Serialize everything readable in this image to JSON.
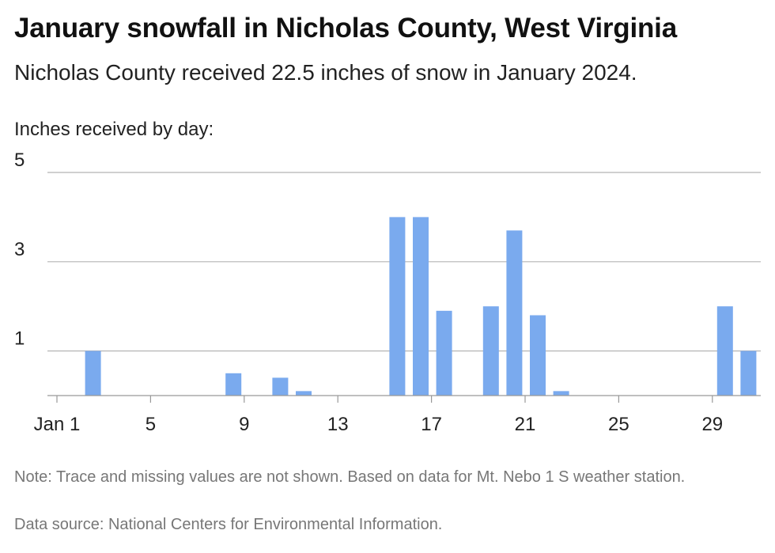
{
  "header": {
    "title": "January snowfall in Nicholas County, West Virginia",
    "subtitle": "Nicholas County received 22.5 inches of snow in January 2024.",
    "axis_caption": "Inches received by day:"
  },
  "footer": {
    "note": "Note: Trace and missing values are not shown. Based on data for Mt. Nebo 1 S weather station.",
    "source": "Data source: National Centers for Environmental Information."
  },
  "colors": {
    "bar": "#7aaaee",
    "grid": "#b5b5b5",
    "axis": "#999999"
  },
  "chart_data": {
    "type": "bar",
    "ylabel": "Inches received by day:",
    "ylim": [
      0,
      5
    ],
    "xlim": [
      1,
      31
    ],
    "y_ticks": [
      1,
      3,
      5
    ],
    "x_ticks": [
      1,
      5,
      9,
      13,
      17,
      21,
      25,
      29
    ],
    "x_tick_labels": [
      "Jan 1",
      "5",
      "9",
      "13",
      "17",
      "21",
      "25",
      "29"
    ],
    "grid": true,
    "x": [
      2,
      8,
      10,
      11,
      15,
      16,
      17,
      19,
      20,
      21,
      22,
      29,
      30
    ],
    "values": [
      1.0,
      0.5,
      0.4,
      0.1,
      4.0,
      4.0,
      1.9,
      2.0,
      3.7,
      1.8,
      0.1,
      2.0,
      1.0
    ]
  }
}
